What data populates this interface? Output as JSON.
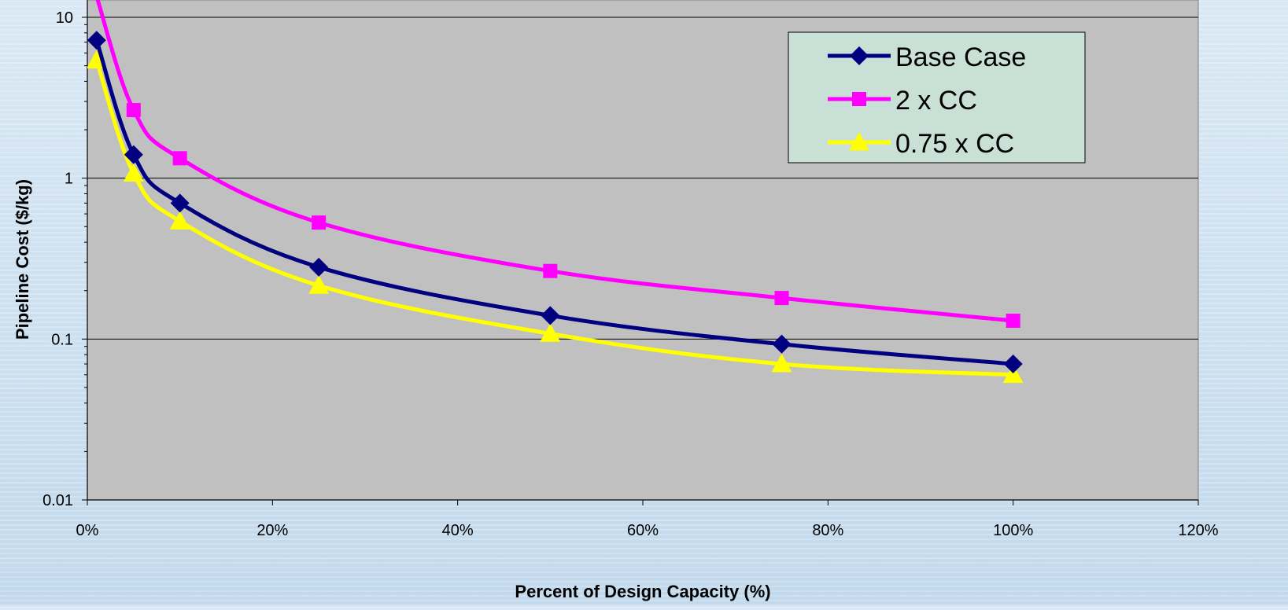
{
  "chart_data": {
    "type": "line",
    "title": "",
    "xlabel": "Percent of Design Capacity (%)",
    "ylabel": "Pipeline Cost ($/kg)",
    "x_scale": "linear",
    "y_scale": "log",
    "xlim": [
      0,
      120
    ],
    "ylim": [
      0.01,
      10
    ],
    "x_ticks": [
      0,
      20,
      40,
      60,
      80,
      100,
      120
    ],
    "x_tick_labels": [
      "0%",
      "20%",
      "40%",
      "60%",
      "80%",
      "100%",
      "120%"
    ],
    "y_ticks": [
      0.01,
      0.1,
      1,
      10
    ],
    "y_tick_labels": [
      "0.01",
      "0.1",
      "1",
      "10"
    ],
    "grid": "horizontal major lines",
    "plot_background": "#c0c0c0",
    "legend_position": "top-right",
    "series": [
      {
        "name": "Base Case",
        "color": "#000080",
        "marker": "diamond",
        "x": [
          1,
          5,
          10,
          25,
          50,
          75,
          100
        ],
        "y": [
          7.2,
          1.4,
          0.7,
          0.28,
          0.14,
          0.093,
          0.07
        ]
      },
      {
        "name": "2 x CC",
        "color": "#ff00ff",
        "marker": "square",
        "x": [
          1,
          5,
          10,
          25,
          50,
          75,
          100
        ],
        "y": [
          13.5,
          2.65,
          1.33,
          0.53,
          0.265,
          0.18,
          0.13
        ]
      },
      {
        "name": "0.75 x CC",
        "color": "#ffff00",
        "marker": "triangle",
        "x": [
          1,
          5,
          10,
          25,
          50,
          75,
          100
        ],
        "y": [
          5.4,
          1.07,
          0.54,
          0.215,
          0.108,
          0.07,
          0.06
        ]
      }
    ]
  }
}
